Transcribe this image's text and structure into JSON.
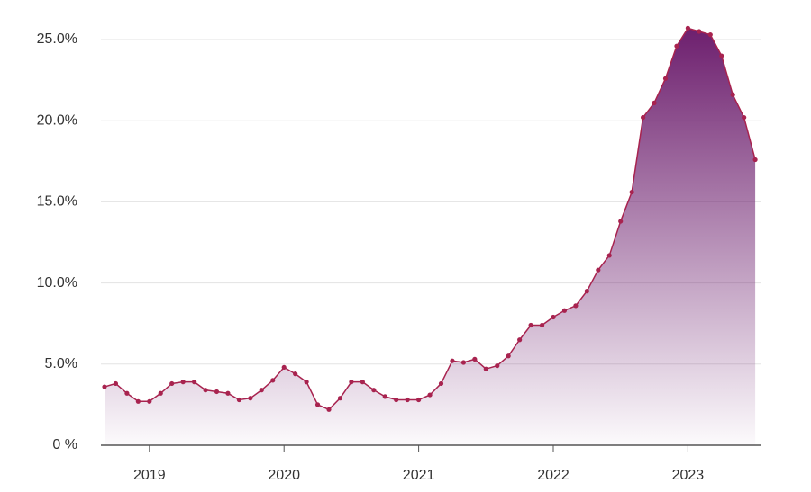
{
  "chart_data": {
    "type": "area",
    "categories": [
      null,
      null,
      null,
      null,
      "2019",
      null,
      null,
      null,
      null,
      null,
      null,
      null,
      null,
      null,
      null,
      null,
      "2020",
      null,
      null,
      null,
      null,
      null,
      null,
      null,
      null,
      null,
      null,
      null,
      "2021",
      null,
      null,
      null,
      null,
      null,
      null,
      null,
      null,
      null,
      null,
      null,
      "2022",
      null,
      null,
      null,
      null,
      null,
      null,
      null,
      null,
      null,
      null,
      null,
      "2023",
      null,
      null,
      null,
      null,
      null,
      null
    ],
    "series": [
      {
        "color": "#a8234f",
        "fill": "#6d1f6e",
        "values": [
          3.6,
          3.8,
          3.2,
          2.7,
          2.7,
          3.2,
          3.8,
          3.9,
          3.9,
          3.4,
          3.3,
          3.2,
          2.8,
          2.9,
          3.4,
          4.0,
          4.8,
          4.4,
          3.9,
          2.5,
          2.2,
          2.9,
          3.9,
          3.9,
          3.4,
          3.0,
          2.8,
          2.8,
          2.8,
          3.1,
          3.8,
          5.2,
          5.1,
          5.3,
          4.7,
          4.9,
          5.5,
          6.5,
          7.4,
          7.4,
          7.9,
          8.3,
          8.6,
          9.5,
          10.8,
          11.7,
          13.8,
          15.6,
          20.2,
          21.1,
          22.6,
          24.6,
          25.7,
          25.5,
          25.3,
          24.0,
          21.6,
          20.2,
          17.6
        ]
      }
    ],
    "ylim": [
      0,
      25
    ],
    "yticks": [
      {
        "value": 0,
        "label": "0 %"
      },
      {
        "value": 5,
        "label": "5.0%"
      },
      {
        "value": 10,
        "label": "10.0%"
      },
      {
        "value": 15,
        "label": "15.0%"
      },
      {
        "value": 20,
        "label": "20.0%"
      },
      {
        "value": 25,
        "label": "25.0%"
      }
    ],
    "grid": true
  }
}
